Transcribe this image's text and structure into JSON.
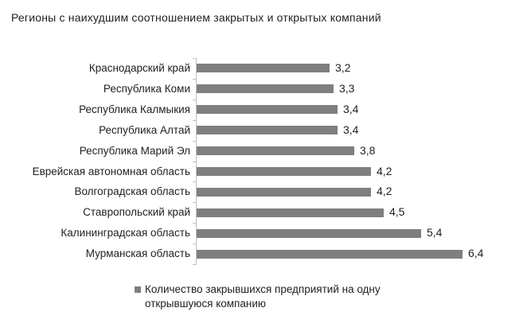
{
  "title": "Регионы с наихудшим соотношением закрытых и открытых компаний",
  "colors": {
    "bar": "#7f7f7f",
    "axis": "#bfbfbf",
    "text": "#1f1f1f",
    "legend_marker": "#7f7f7f",
    "background": "#ffffff"
  },
  "legend": {
    "label": "Количество закрывшихся предприятий на одну открывшуюся компанию",
    "marker": "square-icon"
  },
  "chart_data": {
    "type": "bar",
    "orientation": "horizontal",
    "title": "Регионы с наихудшим соотношением закрытых и открытых компаний",
    "categories": [
      "Краснодарский край",
      "Республика Коми",
      "Республика Калмыкия",
      "Республика Алтай",
      "Республика Марий Эл",
      "Еврейская автономная область",
      "Волгоградская область",
      "Ставропольский край",
      "Калининградская область",
      "Мурманская область"
    ],
    "values": [
      3.2,
      3.3,
      3.4,
      3.4,
      3.8,
      4.2,
      4.2,
      4.5,
      5.4,
      6.4
    ],
    "value_labels": [
      "3,2",
      "3,3",
      "3,4",
      "3,4",
      "3,8",
      "4,2",
      "4,2",
      "4,5",
      "5,4",
      "6,4"
    ],
    "series": [
      {
        "name": "Количество закрывшихся предприятий на одну открывшуюся компанию",
        "values": [
          3.2,
          3.3,
          3.4,
          3.4,
          3.8,
          4.2,
          4.2,
          4.5,
          5.4,
          6.4
        ]
      }
    ],
    "xlabel": "",
    "ylabel": "",
    "xlim": [
      0,
      6.4
    ],
    "grid": false,
    "data_labels": true,
    "legend_position": "bottom"
  }
}
